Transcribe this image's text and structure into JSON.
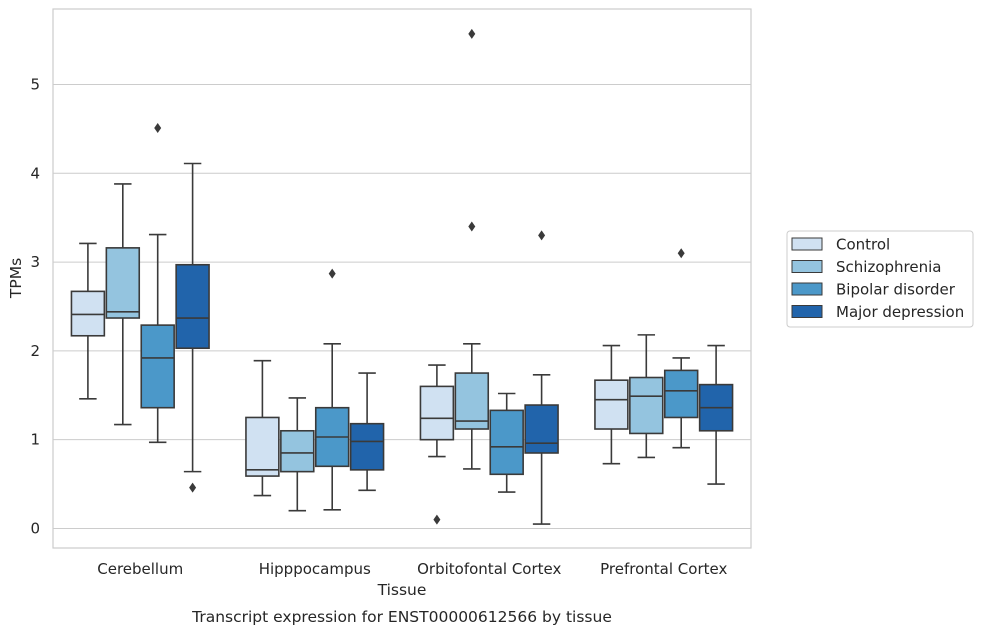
{
  "chart_data": {
    "type": "box",
    "title": "",
    "caption": "Transcript expression for ENST00000612566 by tissue",
    "xlabel": "Tissue",
    "ylabel": "TPMs",
    "ylim": [
      -0.22,
      5.85
    ],
    "yticks": [
      0,
      1,
      2,
      3,
      4,
      5
    ],
    "grid": true,
    "legend_position": "right",
    "categories": [
      "Cerebellum",
      "Hipppocampus",
      "Orbitofontal Cortex",
      "Prefrontal Cortex"
    ],
    "series": [
      {
        "name": "Control",
        "color": "#d0e1f2",
        "boxes": [
          {
            "min": 1.46,
            "q1": 2.17,
            "median": 2.41,
            "q3": 2.67,
            "max": 3.21,
            "outliers": []
          },
          {
            "min": 0.37,
            "q1": 0.59,
            "median": 0.66,
            "q3": 1.25,
            "max": 1.89,
            "outliers": []
          },
          {
            "min": 0.81,
            "q1": 1.0,
            "median": 1.24,
            "q3": 1.6,
            "max": 1.84,
            "outliers": [
              0.1
            ]
          },
          {
            "min": 0.73,
            "q1": 1.12,
            "median": 1.45,
            "q3": 1.67,
            "max": 2.06,
            "outliers": []
          }
        ]
      },
      {
        "name": "Schizophrenia",
        "color": "#94c4df",
        "boxes": [
          {
            "min": 1.17,
            "q1": 2.37,
            "median": 2.44,
            "q3": 3.16,
            "max": 3.88,
            "outliers": []
          },
          {
            "min": 0.2,
            "q1": 0.64,
            "median": 0.85,
            "q3": 1.1,
            "max": 1.47,
            "outliers": []
          },
          {
            "min": 0.67,
            "q1": 1.12,
            "median": 1.21,
            "q3": 1.75,
            "max": 2.08,
            "outliers": [
              3.4,
              5.57
            ]
          },
          {
            "min": 0.8,
            "q1": 1.07,
            "median": 1.49,
            "q3": 1.7,
            "max": 2.18,
            "outliers": []
          }
        ]
      },
      {
        "name": "Bipolar disorder",
        "color": "#4b98c9",
        "boxes": [
          {
            "min": 0.97,
            "q1": 1.36,
            "median": 1.92,
            "q3": 2.29,
            "max": 3.31,
            "outliers": [
              4.51
            ]
          },
          {
            "min": 0.21,
            "q1": 0.7,
            "median": 1.03,
            "q3": 1.36,
            "max": 2.08,
            "outliers": [
              2.87
            ]
          },
          {
            "min": 0.41,
            "q1": 0.61,
            "median": 0.92,
            "q3": 1.33,
            "max": 1.52,
            "outliers": []
          },
          {
            "min": 0.91,
            "q1": 1.25,
            "median": 1.55,
            "q3": 1.78,
            "max": 1.92,
            "outliers": [
              3.1
            ]
          }
        ]
      },
      {
        "name": "Major depression",
        "color": "#2164ab",
        "boxes": [
          {
            "min": 0.64,
            "q1": 2.03,
            "median": 2.37,
            "q3": 2.97,
            "max": 4.11,
            "outliers": [
              0.46
            ]
          },
          {
            "min": 0.43,
            "q1": 0.66,
            "median": 0.98,
            "q3": 1.18,
            "max": 1.75,
            "outliers": []
          },
          {
            "min": 0.05,
            "q1": 0.85,
            "median": 0.96,
            "q3": 1.39,
            "max": 1.73,
            "outliers": [
              3.3
            ]
          },
          {
            "min": 0.5,
            "q1": 1.1,
            "median": 1.36,
            "q3": 1.62,
            "max": 2.06,
            "outliers": []
          }
        ]
      }
    ]
  }
}
